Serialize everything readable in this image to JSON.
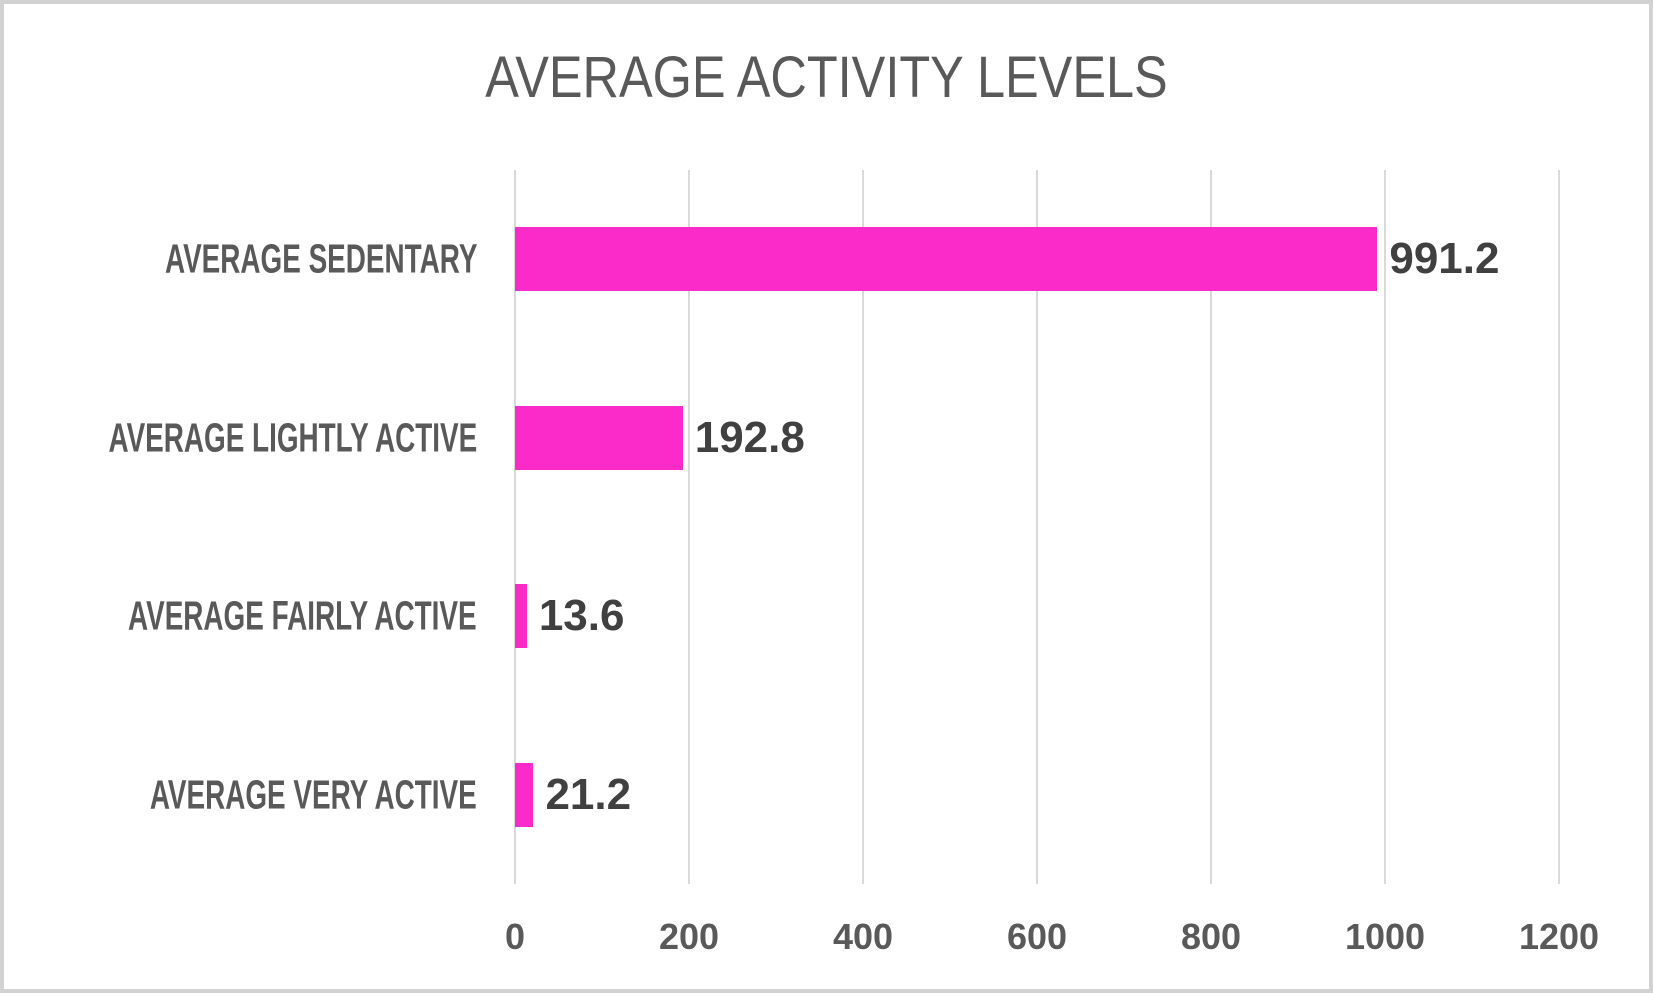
{
  "chart_data": {
    "type": "bar",
    "orientation": "horizontal",
    "title": "AVERAGE ACTIVITY LEVELS",
    "categories": [
      "AVERAGE SEDENTARY",
      "AVERAGE LIGHTLY ACTIVE",
      "AVERAGE FAIRLY ACTIVE",
      "AVERAGE VERY ACTIVE"
    ],
    "values": [
      991.2,
      192.8,
      13.6,
      21.2
    ],
    "data_labels": [
      "991.2",
      "192.8",
      "13.6",
      "21.2"
    ],
    "xlim": [
      0,
      1200
    ],
    "x_ticks": [
      0,
      200,
      400,
      600,
      800,
      1000,
      1200
    ],
    "grid": true,
    "legend": false,
    "xlabel": "",
    "ylabel": "",
    "colors": {
      "bar": "#FA2BC8",
      "title": "#595959",
      "category_label": "#595959",
      "value_label": "#404040",
      "tick_label": "#595959",
      "gridline": "#D9D9D9"
    }
  }
}
